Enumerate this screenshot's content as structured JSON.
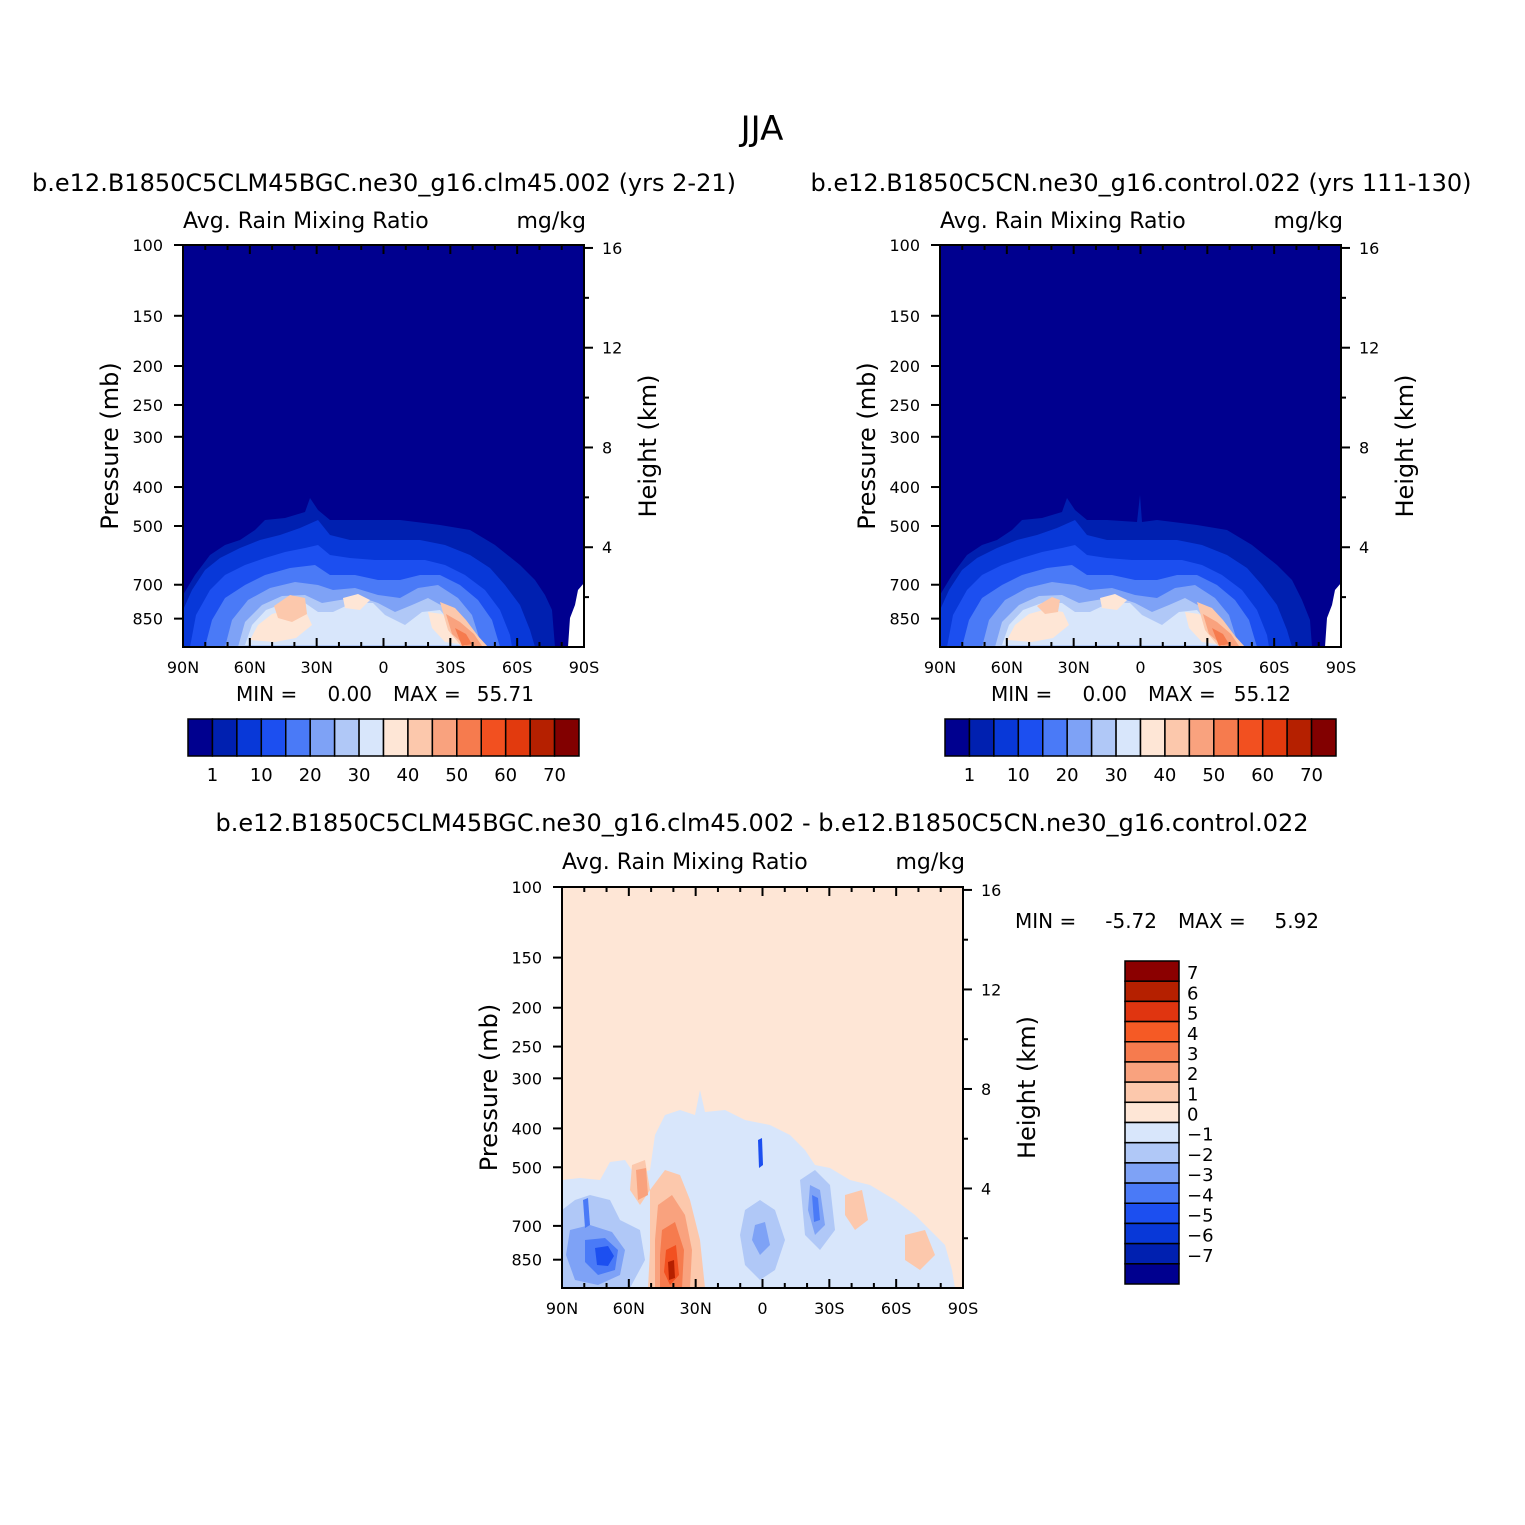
{
  "figure": {
    "title": "JJA"
  },
  "chart_data": [
    {
      "type": "heatmap",
      "subtitle": "b.e12.B1850C5CLM45BGC.ne30_g16.clm45.002 (yrs 2-21)",
      "title": "Avg. Rain Mixing Ratio",
      "units": "mg/kg",
      "ylabel": "Pressure (mb)",
      "y2label": "Height (km)",
      "x_ticks": [
        "90N",
        "60N",
        "30N",
        "0",
        "30S",
        "60S",
        "90S"
      ],
      "y_ticks": [
        "100",
        "150",
        "200",
        "250",
        "300",
        "400",
        "500",
        "700",
        "850"
      ],
      "y2_ticks": [
        "16",
        "12",
        "8",
        "4"
      ],
      "min_label": "MIN =",
      "min_value": "0.00",
      "max_label": "MAX =",
      "max_value": "55.71",
      "colorbar_labels": [
        "1",
        "10",
        "20",
        "30",
        "40",
        "50",
        "60",
        "70"
      ],
      "colorbar_colors": [
        "#00008f",
        "#0020b0",
        "#0838d8",
        "#1c4ff0",
        "#4a7af7",
        "#7ea2f6",
        "#b0c8f7",
        "#d8e6fb",
        "#fee6d6",
        "#fcc8ac",
        "#f9a27e",
        "#f67b4e",
        "#f25020",
        "#e23a0e",
        "#b52000",
        "#820000"
      ]
    },
    {
      "type": "heatmap",
      "subtitle": "b.e12.B1850C5CN.ne30_g16.control.022 (yrs 111-130)",
      "title": "Avg. Rain Mixing Ratio",
      "units": "mg/kg",
      "ylabel": "Pressure (mb)",
      "y2label": "Height (km)",
      "x_ticks": [
        "90N",
        "60N",
        "30N",
        "0",
        "30S",
        "60S",
        "90S"
      ],
      "y_ticks": [
        "100",
        "150",
        "200",
        "250",
        "300",
        "400",
        "500",
        "700",
        "850"
      ],
      "y2_ticks": [
        "16",
        "12",
        "8",
        "4"
      ],
      "min_label": "MIN =",
      "min_value": "0.00",
      "max_label": "MAX =",
      "max_value": "55.12",
      "colorbar_labels": [
        "1",
        "10",
        "20",
        "30",
        "40",
        "50",
        "60",
        "70"
      ],
      "colorbar_colors": [
        "#00008f",
        "#0020b0",
        "#0838d8",
        "#1c4ff0",
        "#4a7af7",
        "#7ea2f6",
        "#b0c8f7",
        "#d8e6fb",
        "#fee6d6",
        "#fcc8ac",
        "#f9a27e",
        "#f67b4e",
        "#f25020",
        "#e23a0e",
        "#b52000",
        "#820000"
      ]
    },
    {
      "type": "heatmap",
      "subtitle": "b.e12.B1850C5CLM45BGC.ne30_g16.clm45.002 - b.e12.B1850C5CN.ne30_g16.control.022",
      "title": "Avg. Rain Mixing Ratio",
      "units": "mg/kg",
      "ylabel": "Pressure (mb)",
      "y2label": "Height (km)",
      "x_ticks": [
        "90N",
        "60N",
        "30N",
        "0",
        "30S",
        "60S",
        "90S"
      ],
      "y_ticks": [
        "100",
        "150",
        "200",
        "250",
        "300",
        "400",
        "500",
        "700",
        "850"
      ],
      "y2_ticks": [
        "16",
        "12",
        "8",
        "4"
      ],
      "min_label": "MIN =",
      "min_value": "-5.72",
      "max_label": "MAX =",
      "max_value": "5.92",
      "colorbar_labels": [
        "7",
        "6",
        "5",
        "4",
        "3",
        "2",
        "1",
        "0",
        "-1",
        "-2",
        "-3",
        "-4",
        "-5",
        "-6",
        "-7"
      ],
      "colorbar_colors": [
        "#8b0000",
        "#b52000",
        "#e03510",
        "#f55a25",
        "#f67b4e",
        "#f9a27e",
        "#fcc8ac",
        "#fee6d6",
        "#d8e6fb",
        "#b0c8f7",
        "#7ea2f6",
        "#4a7af7",
        "#1c4ff0",
        "#0838d8",
        "#0020b0",
        "#00008f"
      ]
    }
  ]
}
